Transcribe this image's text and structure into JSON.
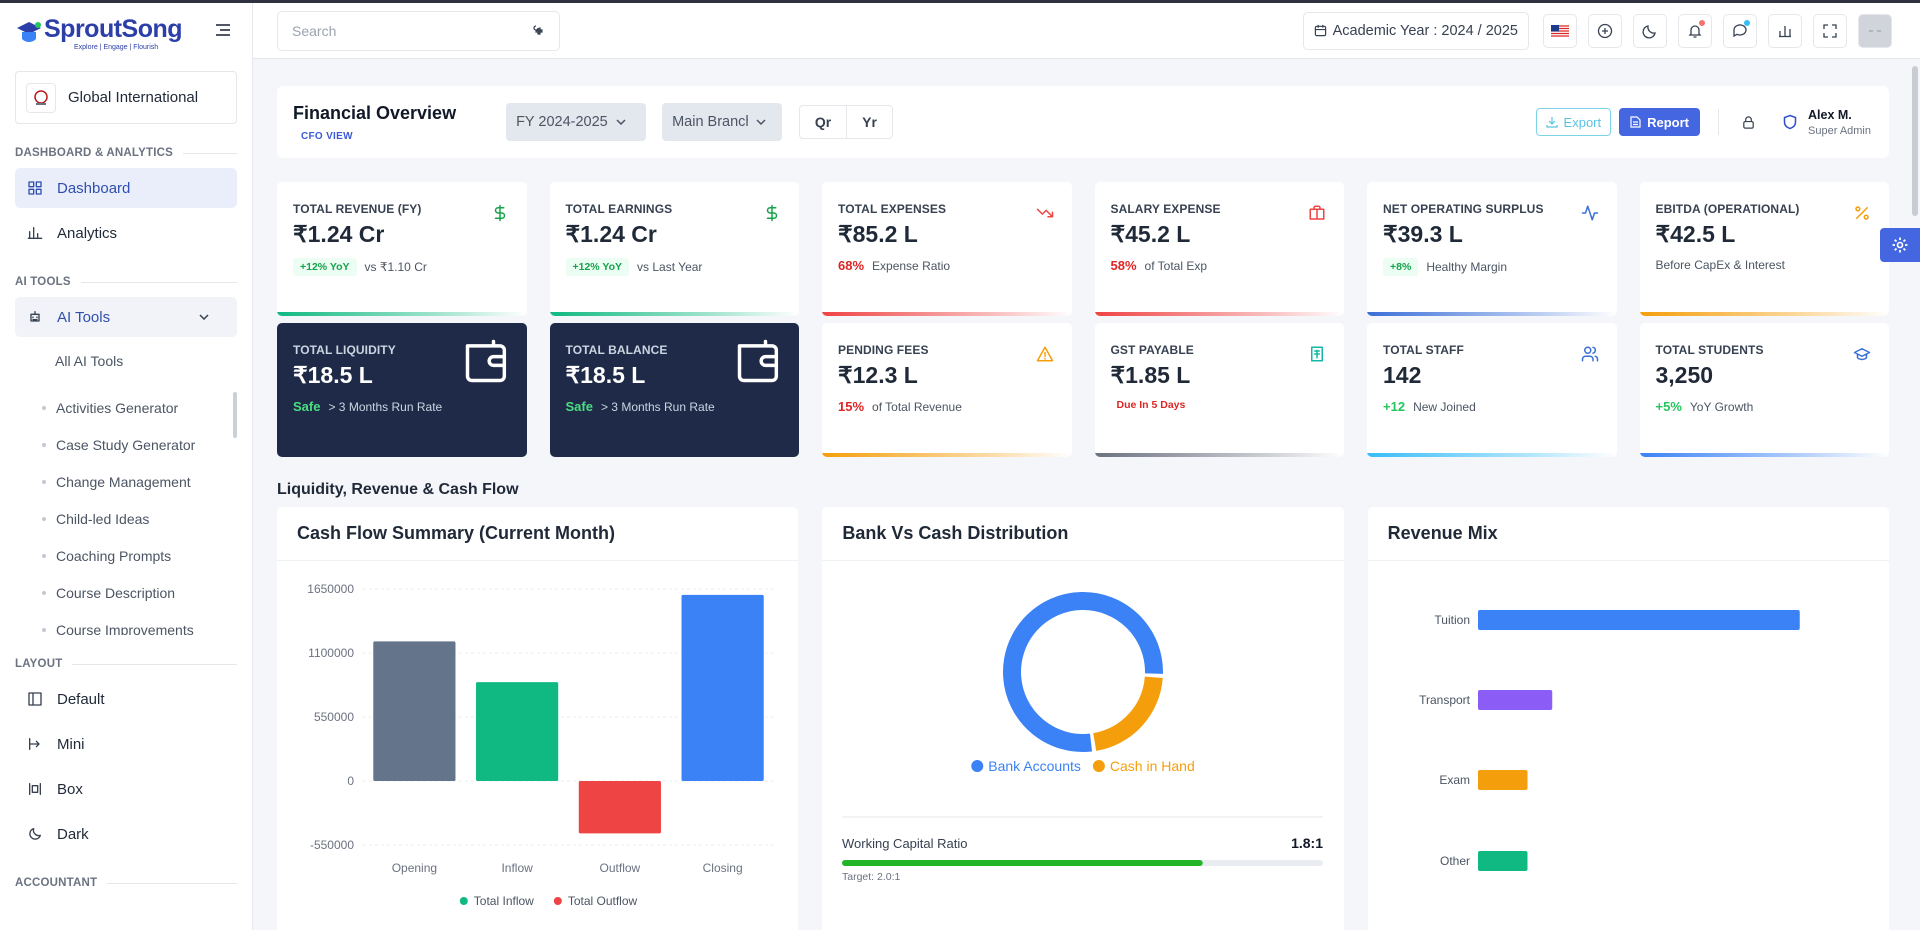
{
  "brand": {
    "name": "SproutSong",
    "tagline": "Explore | Engage | Flourish"
  },
  "school": "Global International",
  "sidebar": {
    "sections": [
      {
        "title": "DASHBOARD & ANALYTICS",
        "items": [
          "Dashboard",
          "Analytics"
        ]
      },
      {
        "title": "AI TOOLS",
        "items": [
          "AI Tools"
        ],
        "subitems": [
          "All AI Tools",
          "Activities Generator",
          "Case Study Generator",
          "Change Management",
          "Child-led Ideas",
          "Coaching Prompts",
          "Course Description",
          "Course Improvements"
        ]
      },
      {
        "title": "LAYOUT",
        "items": [
          "Default",
          "Mini",
          "Box",
          "Dark"
        ]
      },
      {
        "title": "ACCOUNTANT"
      }
    ]
  },
  "header": {
    "search": "Search",
    "academic_year": "Academic Year : 2024 / 2025"
  },
  "overview": {
    "title": "Financial Overview",
    "subtitle": "CFO VIEW",
    "fy": "FY 2024-2025",
    "branch": "Main Branch",
    "periods": [
      "Qr",
      "Yr"
    ],
    "export": "Export",
    "report": "Report",
    "user": {
      "name": "Alex M.",
      "role": "Super Admin"
    }
  },
  "kpis": [
    {
      "label": "TOTAL REVENUE (FY)",
      "value": "₹1.24 Cr",
      "badge": "+12% YoY",
      "badge_tone": "green",
      "badge_style": "pill",
      "note": "vs ₹1.10 Cr",
      "icon": "dollar",
      "color": "#16a34a",
      "bar": "#10b981"
    },
    {
      "label": "TOTAL EARNINGS",
      "value": "₹1.24 Cr",
      "badge": "+12% YoY",
      "badge_tone": "green",
      "badge_style": "pill",
      "note": "vs Last Year",
      "icon": "dollar",
      "color": "#16a34a",
      "bar": "#10b981"
    },
    {
      "label": "TOTAL EXPENSES",
      "value": "₹85.2 L",
      "badge": "68%",
      "badge_tone": "red",
      "note": "Expense Ratio",
      "icon": "trend",
      "color": "#ef4444",
      "bar": "#ef4444"
    },
    {
      "label": "SALARY EXPENSE",
      "value": "₹45.2 L",
      "badge": "58%",
      "badge_tone": "red",
      "note": "of Total Exp",
      "icon": "briefcase",
      "color": "#ef4444",
      "bar": "#ef4444"
    },
    {
      "label": "NET OPERATING SURPLUS",
      "value": "₹39.3 L",
      "badge": "+8%",
      "badge_tone": "green",
      "badge_style": "pill",
      "note": "Healthy Margin",
      "icon": "pulse",
      "color": "#3b6fd8",
      "bar": "#3b6fd8"
    },
    {
      "label": "EBITDA (OPERATIONAL)",
      "value": "₹42.5 L",
      "note": "Before CapEx & Interest",
      "icon": "percent",
      "color": "#f59e0b",
      "bar": "#f59e0b"
    },
    {
      "label": "TOTAL LIQUIDITY",
      "value": "₹18.5 L",
      "badge": "Safe",
      "badge_tone": "green",
      "note": "> 3 Months Run Rate",
      "icon": "wallet",
      "color": "#ffffff",
      "dark": true
    },
    {
      "label": "TOTAL BALANCE",
      "value": "₹18.5 L",
      "badge": "Safe",
      "badge_tone": "green",
      "note": "> 3 Months Run Rate",
      "icon": "wallet",
      "color": "#ffffff",
      "dark": true
    },
    {
      "label": "PENDING FEES",
      "value": "₹12.3 L",
      "badge": "15%",
      "badge_tone": "red",
      "note": "of Total Revenue",
      "icon": "warning",
      "color": "#f59e0b",
      "bar": "#f59e0b"
    },
    {
      "label": "GST PAYABLE",
      "value": "₹1.85 L",
      "badge": "Due In 5 Days",
      "badge_tone": "red",
      "badge_style": "small",
      "icon": "receipt",
      "color": "#14b8a6",
      "bar": "#6b7280"
    },
    {
      "label": "TOTAL STAFF",
      "value": "142",
      "badge": "+12",
      "badge_tone": "green",
      "note": "New Joined",
      "icon": "users",
      "color": "#3b6fd8",
      "bar": "#38bdf8"
    },
    {
      "label": "TOTAL STUDENTS",
      "value": "3,250",
      "badge": "+5%",
      "badge_tone": "green",
      "note": "YoY Growth",
      "icon": "cap",
      "color": "#3b6fd8",
      "bar": "#3b82f6"
    }
  ],
  "section_title": "Liquidity, Revenue & Cash Flow",
  "chart_data": [
    {
      "type": "bar",
      "title": "Cash Flow Summary (Current Month)",
      "categories": [
        "Opening",
        "Inflow",
        "Outflow",
        "Closing"
      ],
      "values": [
        1200000,
        850000,
        -450000,
        1600000
      ],
      "colors": [
        "#64748b",
        "#10b981",
        "#ef4444",
        "#3b82f6"
      ],
      "ylim": [
        -550000,
        1650000
      ],
      "yticks": [
        -550000,
        0,
        550000,
        1100000,
        1650000
      ],
      "grid": true,
      "legend": [
        {
          "name": "Total Inflow",
          "color": "#10b981"
        },
        {
          "name": "Total Outflow",
          "color": "#ef4444"
        }
      ]
    },
    {
      "type": "donut",
      "title": "Bank Vs Cash Distribution",
      "categories": [
        "Bank Accounts",
        "Cash in Hand"
      ],
      "values": [
        78,
        22
      ],
      "colors": [
        "#3b82f6",
        "#f59e0b"
      ],
      "metric": {
        "label": "Working Capital Ratio",
        "value": "1.8:1",
        "progress": 75,
        "target": "Target: 2.0:1",
        "color": "#22b527"
      }
    },
    {
      "type": "hbar",
      "title": "Revenue Mix",
      "categories": [
        "Tuition",
        "Transport",
        "Exam",
        "Other"
      ],
      "values": [
        65,
        15,
        10,
        10
      ],
      "colors": [
        "#3b82f6",
        "#8b5cf6",
        "#f59e0b",
        "#10b981"
      ],
      "xlim": [
        0,
        80
      ]
    }
  ]
}
